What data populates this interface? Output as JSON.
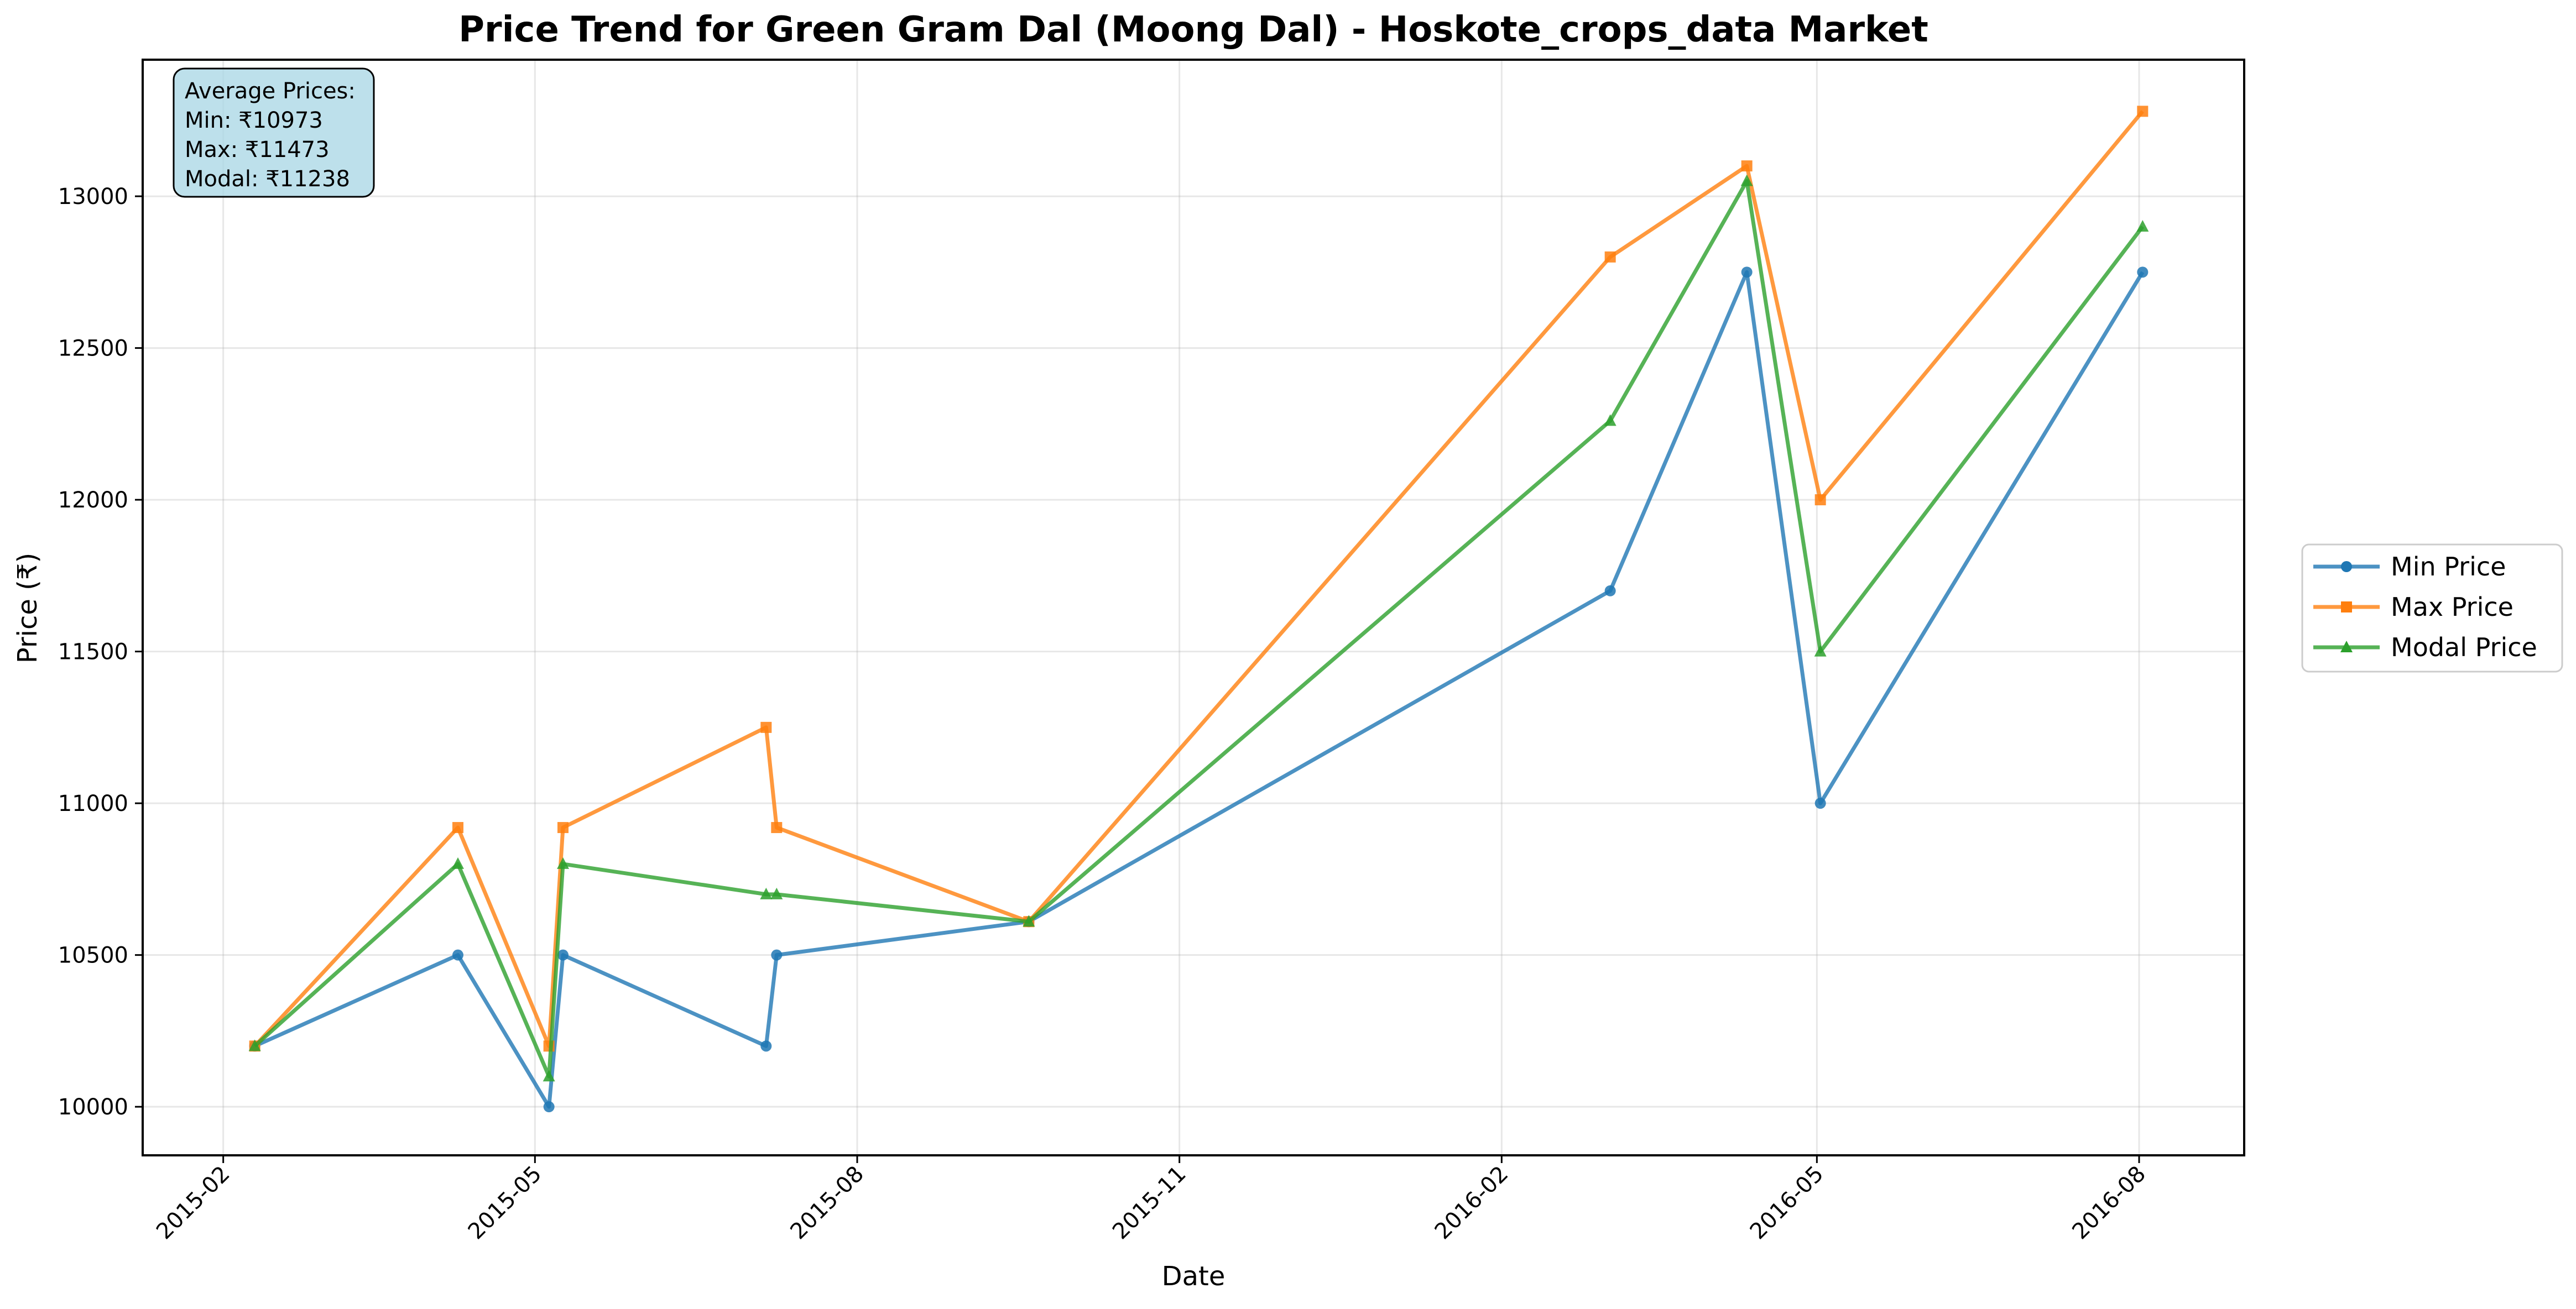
{
  "chart_data": {
    "type": "line",
    "title": "Price Trend for Green Gram Dal (Moong Dal) - Hoskote_crops_data Market",
    "xlabel": "Date",
    "ylabel": "Price (₹)",
    "x_ticks": [
      "2015-02",
      "2015-05",
      "2015-08",
      "2015-11",
      "2016-02",
      "2016-05",
      "2016-08"
    ],
    "y_ticks": [
      10000,
      10500,
      11000,
      11500,
      12000,
      12500,
      13000
    ],
    "xlim": [
      "2015-01-09",
      "2016-08-31"
    ],
    "ylim": [
      9840,
      13450
    ],
    "grid": true,
    "legend_position": "outside-right",
    "dates": [
      "2015-02-10",
      "2015-04-09",
      "2015-05-05",
      "2015-05-09",
      "2015-07-06",
      "2015-07-09",
      "2015-09-19",
      "2016-03-03",
      "2016-04-11",
      "2016-05-02",
      "2016-08-02"
    ],
    "series": [
      {
        "name": "Min Price",
        "color": "#1f77b4",
        "marker": "circle",
        "values": [
          10200,
          10500,
          10000,
          10500,
          10200,
          10500,
          10610,
          11700,
          12750,
          11000,
          12750
        ]
      },
      {
        "name": "Max Price",
        "color": "#ff7f0e",
        "marker": "square",
        "values": [
          10200,
          10920,
          10200,
          10920,
          11250,
          10920,
          10610,
          12800,
          13100,
          12000,
          13280
        ]
      },
      {
        "name": "Modal Price",
        "color": "#2ca02c",
        "marker": "triangle",
        "values": [
          10200,
          10800,
          10100,
          10800,
          10700,
          10700,
          10610,
          12260,
          13050,
          11500,
          12900
        ]
      }
    ],
    "annotation": {
      "lines": [
        "Average Prices:",
        "Min: ₹10973",
        "Max: ₹11473",
        "Modal: ₹11238"
      ],
      "background": "#add8e6"
    }
  }
}
